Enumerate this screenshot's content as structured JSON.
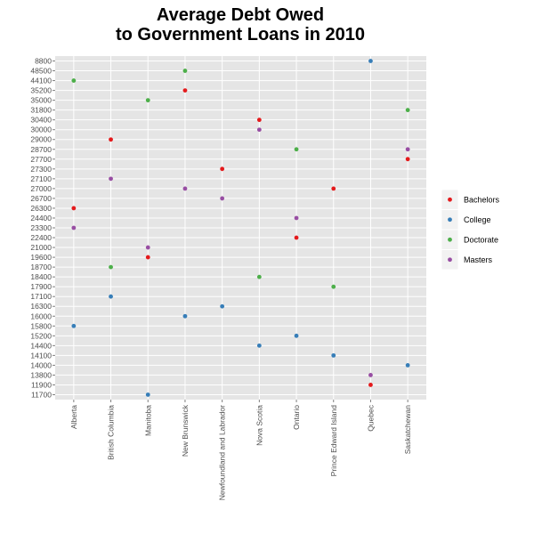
{
  "chart_data": {
    "type": "scatter",
    "title_line1": "Average Debt Owed",
    "title_line2": "to Government Loans in 2010",
    "xlabel": "",
    "ylabel": "",
    "x_categories": [
      "Alberta",
      "British Columbia",
      "Manitoba",
      "New Brunswick",
      "Newfoundland and Labrador",
      "Nova Scotia",
      "Ontario",
      "Prince Edward Island",
      "Quebec",
      "Saskatchewan"
    ],
    "y_tick_labels": [
      "11700",
      "11900",
      "13800",
      "14000",
      "14100",
      "14400",
      "15200",
      "15800",
      "16000",
      "16300",
      "17100",
      "17900",
      "18400",
      "18700",
      "19600",
      "21000",
      "22400",
      "23300",
      "24400",
      "26300",
      "26700",
      "27000",
      "27100",
      "27300",
      "27700",
      "28700",
      "29000",
      "30000",
      "30400",
      "31800",
      "35000",
      "35200",
      "44100",
      "48500",
      "8800"
    ],
    "y_axis_note": "y axis is categorical; tick labels listed bottom to top",
    "grid": true,
    "legend_position": "right",
    "series": [
      {
        "name": "Bachelors",
        "color": "#e41a1c",
        "points": [
          {
            "x": "Alberta",
            "y": "26300"
          },
          {
            "x": "British Columbia",
            "y": "29000"
          },
          {
            "x": "Manitoba",
            "y": "19600"
          },
          {
            "x": "New Brunswick",
            "y": "35200"
          },
          {
            "x": "Newfoundland and Labrador",
            "y": "27300"
          },
          {
            "x": "Nova Scotia",
            "y": "30400"
          },
          {
            "x": "Ontario",
            "y": "22400"
          },
          {
            "x": "Prince Edward Island",
            "y": "27000"
          },
          {
            "x": "Quebec",
            "y": "11900"
          },
          {
            "x": "Saskatchewan",
            "y": "27700"
          }
        ]
      },
      {
        "name": "College",
        "color": "#377eb8",
        "points": [
          {
            "x": "Alberta",
            "y": "15800"
          },
          {
            "x": "British Columbia",
            "y": "17100"
          },
          {
            "x": "Manitoba",
            "y": "11700"
          },
          {
            "x": "New Brunswick",
            "y": "16000"
          },
          {
            "x": "Newfoundland and Labrador",
            "y": "16300"
          },
          {
            "x": "Nova Scotia",
            "y": "14400"
          },
          {
            "x": "Ontario",
            "y": "15200"
          },
          {
            "x": "Prince Edward Island",
            "y": "14100"
          },
          {
            "x": "Quebec",
            "y": "8800"
          },
          {
            "x": "Saskatchewan",
            "y": "14000"
          }
        ]
      },
      {
        "name": "Doctorate",
        "color": "#4daf4a",
        "points": [
          {
            "x": "Alberta",
            "y": "44100"
          },
          {
            "x": "British Columbia",
            "y": "18700"
          },
          {
            "x": "Manitoba",
            "y": "35000"
          },
          {
            "x": "New Brunswick",
            "y": "48500"
          },
          {
            "x": "Nova Scotia",
            "y": "18400"
          },
          {
            "x": "Ontario",
            "y": "28700"
          },
          {
            "x": "Prince Edward Island",
            "y": "17900"
          },
          {
            "x": "Saskatchewan",
            "y": "31800"
          }
        ]
      },
      {
        "name": "Masters",
        "color": "#984ea3",
        "points": [
          {
            "x": "Alberta",
            "y": "23300"
          },
          {
            "x": "British Columbia",
            "y": "27100"
          },
          {
            "x": "Manitoba",
            "y": "21000"
          },
          {
            "x": "New Brunswick",
            "y": "27000"
          },
          {
            "x": "Newfoundland and Labrador",
            "y": "26700"
          },
          {
            "x": "Nova Scotia",
            "y": "30000"
          },
          {
            "x": "Ontario",
            "y": "24400"
          },
          {
            "x": "Quebec",
            "y": "13800"
          },
          {
            "x": "Saskatchewan",
            "y": "28700"
          }
        ]
      }
    ]
  },
  "colors": {
    "panel_background": "#e5e5e5",
    "grid_line": "#ffffff",
    "tick_text": "#4d4d4d"
  }
}
